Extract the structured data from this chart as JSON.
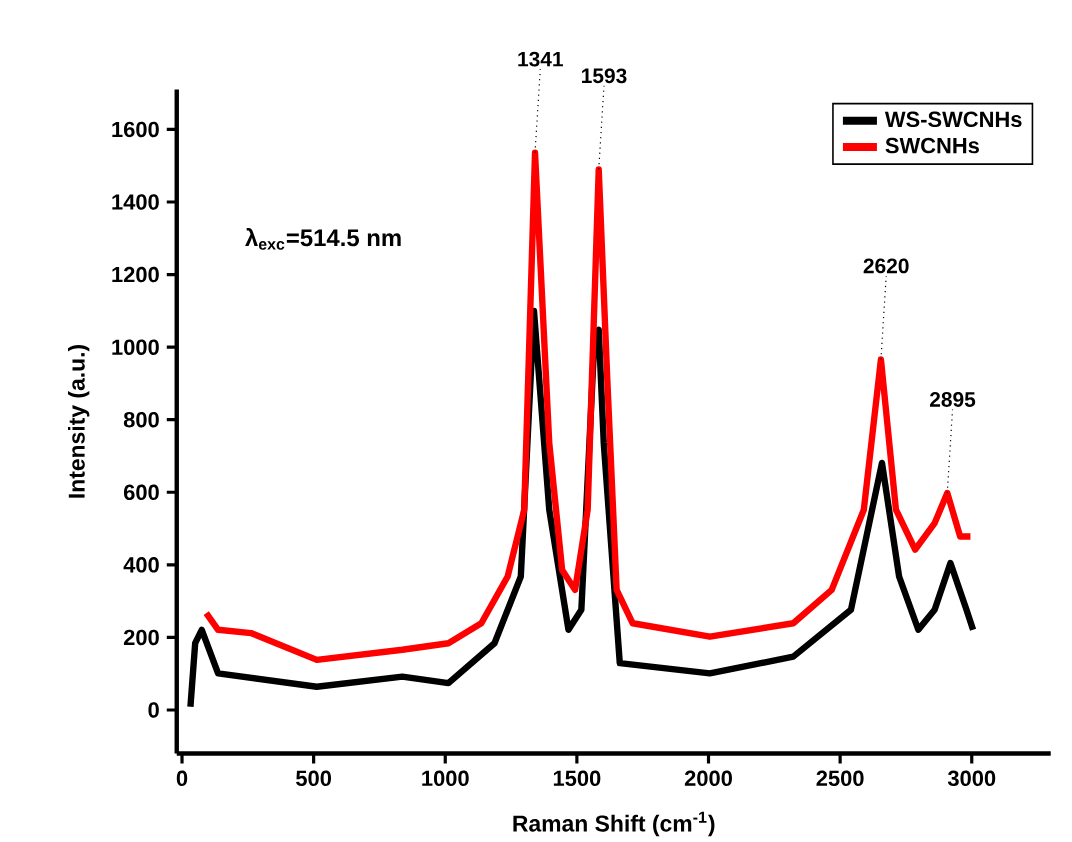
{
  "chart_data": {
    "type": "line",
    "xlabel": "Raman Shift (cm$^{-1}$)",
    "ylabel": "Intensity (a.u.)",
    "xlim": [
      -20,
      3300
    ],
    "ylim": [
      -120,
      1710
    ],
    "xticks": [
      0,
      500,
      1000,
      1500,
      2000,
      2500,
      3000
    ],
    "yticks": [
      0,
      200,
      400,
      600,
      800,
      1000,
      1200,
      1400,
      1600
    ],
    "legend": "top right",
    "marker": "none",
    "line_style": "solid",
    "series": [
      {
        "name": "WS-SWCNHs",
        "color": "#000000",
        "x": [
          32,
          50,
          75,
          137,
          512,
          837,
          1012,
          1187,
          1287,
          1337,
          1340,
          1395,
          1468,
          1517,
          1566,
          1583,
          1602,
          1663,
          2005,
          2322,
          2541,
          2659,
          2724,
          2797,
          2859,
          2919,
          2980,
          3005
        ],
        "values": [
          9,
          184,
          221,
          101,
          64,
          92,
          74,
          184,
          368,
          1100,
          null,
          552,
          221,
          276,
          1012,
          1048,
          736,
          129,
          101,
          147,
          276,
          681,
          368,
          221,
          276,
          405,
          276,
          221
        ]
      },
      {
        "name": "SWCNHs",
        "color": "#ff0000",
        "x": [
          92,
          137,
          262,
          512,
          837,
          1012,
          1137,
          1237,
          1300,
          1341,
          1395,
          1444,
          1493,
          1541,
          1583,
          1615,
          1651,
          1712,
          2005,
          2322,
          2468,
          2590,
          2655,
          2712,
          2785,
          2859,
          2907,
          2956,
          2995
        ],
        "values": [
          267,
          221,
          212,
          138,
          166,
          184,
          239,
          368,
          552,
          1536,
          736,
          386,
          331,
          552,
          1490,
          920,
          331,
          239,
          202,
          239,
          331,
          552,
          966,
          552,
          442,
          515,
          598,
          478,
          478
        ]
      }
    ],
    "annotations": [
      "λ$_{exc}$=514.5 nm",
      {
        "text": "1341",
        "x": 1341,
        "y": 1536
      },
      {
        "text": "1593",
        "x": 1583,
        "y": 1490
      },
      {
        "text": "2620",
        "x": 2655,
        "y": 966
      },
      {
        "text": "2895",
        "x": 2907,
        "y": 598
      }
    ]
  }
}
